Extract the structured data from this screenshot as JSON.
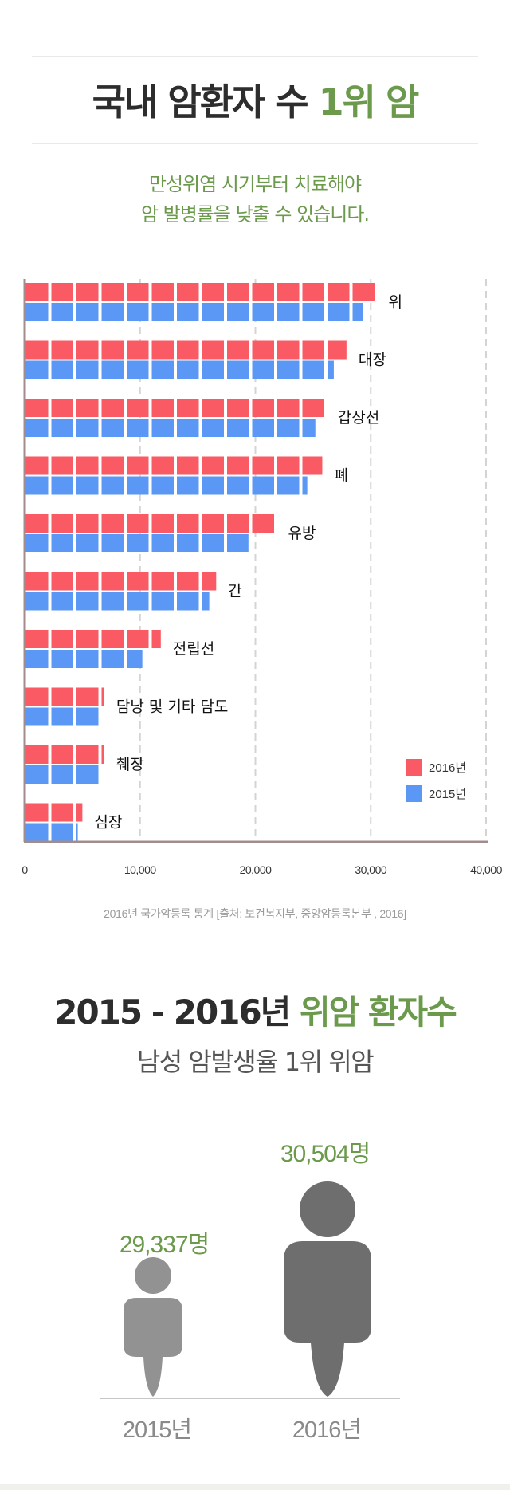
{
  "header": {
    "title_main": "국내 암환자 수",
    "title_highlight": "1위 암",
    "subtitle_line1": "만성위염 시기부터 치료해야",
    "subtitle_line2": "암 발병률을 낮출 수 있습니다."
  },
  "colors": {
    "series_2016": "#fa5a63",
    "series_2015": "#5b98f5",
    "green": "#6c9a4c",
    "figure_2015": "#929292",
    "figure_2016": "#6e6e6e"
  },
  "chart_data": {
    "type": "bar",
    "orientation": "horizontal",
    "categories": [
      "위",
      "대장",
      "갑상선",
      "폐",
      "유방",
      "간",
      "전립선",
      "담낭 및 기타 담도",
      "췌장",
      "심장"
    ],
    "series": [
      {
        "name": "2016년",
        "values": [
          30500,
          27900,
          26100,
          25800,
          21800,
          16600,
          11800,
          6900,
          6900,
          5000
        ]
      },
      {
        "name": "2015년",
        "values": [
          29337,
          26800,
          25200,
          24500,
          19400,
          16000,
          10200,
          6500,
          6500,
          4600
        ]
      }
    ],
    "xlim": [
      0,
      40000
    ],
    "xticks": [
      "0",
      "10,000",
      "20,000",
      "30,000",
      "40,000"
    ],
    "xtick_values": [
      0,
      10000,
      20000,
      30000,
      40000
    ],
    "legend_position": "bottom-right",
    "grid": "vertical dashed"
  },
  "source_note": "2016년 국가암등록 통계 [출처: 보건복지부, 중앙암등록본부 , 2016]",
  "section2": {
    "title_main": "2015 - 2016년",
    "title_highlight": "위암 환자수",
    "subtitle": "남성 암발생율 1위 위암",
    "count_2015": "29,337명",
    "count_2016": "30,504명",
    "year_2015": "2015년",
    "year_2016": "2016년"
  }
}
